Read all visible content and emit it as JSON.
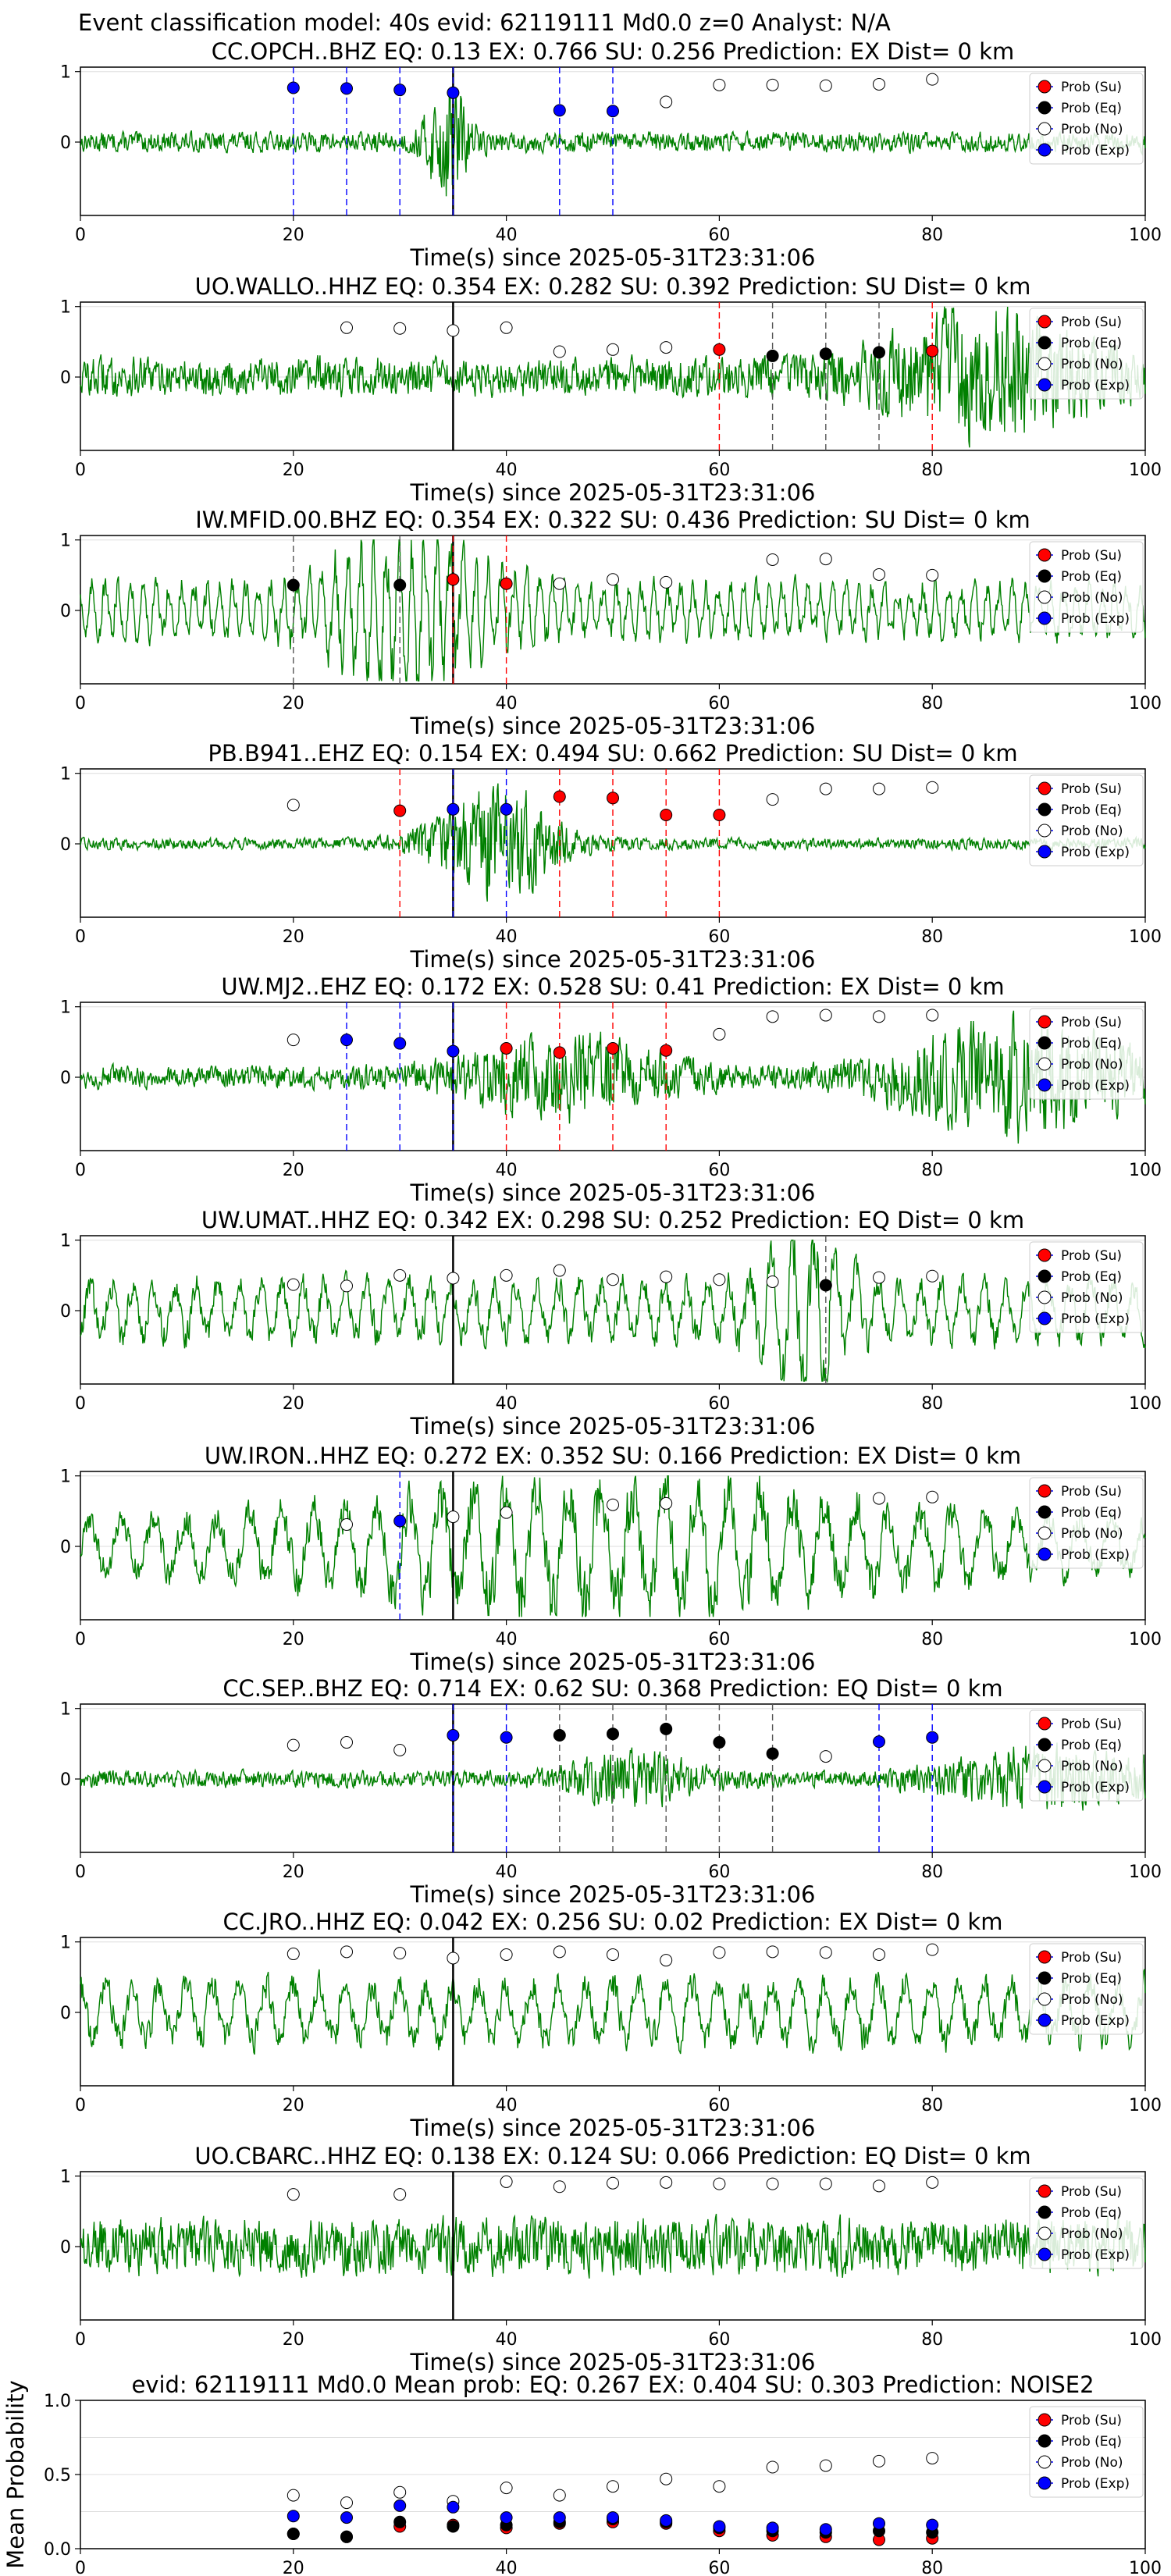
{
  "figure": {
    "suptitle": "Event classification model: 40s evid: 62119111 Md0.0 z=0 Analyst: N/A",
    "xlabel": "Time(s) since 2025-05-31T23:31:06"
  },
  "legend": {
    "entries": [
      {
        "label": "Prob (Su)",
        "color": "#ff0000"
      },
      {
        "label": "Prob (Eq)",
        "color": "#000000"
      },
      {
        "label": "Prob (No)",
        "color": "#ffffff"
      },
      {
        "label": "Prob (Exp)",
        "color": "#0000ff"
      }
    ]
  },
  "colors": {
    "waveform": "#008000",
    "su": "#ff0000",
    "eq": "#000000",
    "no": "#ffffff",
    "exp": "#0000ff",
    "pick_line": "#000000",
    "grid": "#dddddd"
  },
  "chart_data": [
    {
      "type": "line",
      "title": "CC.OPCH..BHZ   EQ: 0.13  EX: 0.766  SU: 0.256   Prediction: EX    Dist= 0 km",
      "xlabel": "Time(s) since 2025-05-31T23:31:06",
      "xlim": [
        0,
        100
      ],
      "ylim": [
        -1,
        1
      ],
      "xticks": [
        "0",
        "20",
        "40",
        "60",
        "80",
        "100"
      ],
      "yticks": [
        "1",
        "0"
      ],
      "pick_time": 35,
      "waveform": {
        "amplitude": 0.18,
        "noise_period": 0.3,
        "bursts": [
          {
            "t": 34.5,
            "width": 2.0,
            "amp": 1.0,
            "period": 0.4
          }
        ]
      },
      "markers": [
        {
          "t": 20,
          "cls": "exp",
          "p": 0.77
        },
        {
          "t": 25,
          "cls": "exp",
          "p": 0.76
        },
        {
          "t": 30,
          "cls": "exp",
          "p": 0.74
        },
        {
          "t": 35,
          "cls": "exp",
          "p": 0.7
        },
        {
          "t": 45,
          "cls": "exp",
          "p": 0.45
        },
        {
          "t": 50,
          "cls": "exp",
          "p": 0.44
        },
        {
          "t": 55,
          "cls": "no",
          "p": 0.57
        },
        {
          "t": 60,
          "cls": "no",
          "p": 0.81
        },
        {
          "t": 65,
          "cls": "no",
          "p": 0.81
        },
        {
          "t": 70,
          "cls": "no",
          "p": 0.8
        },
        {
          "t": 75,
          "cls": "no",
          "p": 0.82
        },
        {
          "t": 80,
          "cls": "no",
          "p": 0.89
        }
      ]
    },
    {
      "type": "line",
      "title": "UO.WALLO..HHZ   EQ: 0.354  EX: 0.282  SU: 0.392   Prediction: SU    Dist= 0 km",
      "xlabel": "Time(s) since 2025-05-31T23:31:06",
      "xlim": [
        0,
        100
      ],
      "ylim": [
        -1,
        1
      ],
      "xticks": [
        "0",
        "20",
        "40",
        "60",
        "80",
        "100"
      ],
      "yticks": [
        "1",
        "0"
      ],
      "pick_time": 35,
      "waveform": {
        "amplitude": 0.35,
        "noise_period": 0.25,
        "bursts": [
          {
            "t": 85,
            "width": 10,
            "amp": 0.9,
            "period": 0.3
          }
        ]
      },
      "markers": [
        {
          "t": 25,
          "cls": "no",
          "p": 0.7
        },
        {
          "t": 30,
          "cls": "no",
          "p": 0.69
        },
        {
          "t": 35,
          "cls": "no",
          "p": 0.66
        },
        {
          "t": 40,
          "cls": "no",
          "p": 0.7
        },
        {
          "t": 45,
          "cls": "no",
          "p": 0.36
        },
        {
          "t": 50,
          "cls": "no",
          "p": 0.39
        },
        {
          "t": 55,
          "cls": "no",
          "p": 0.42
        },
        {
          "t": 60,
          "cls": "su",
          "p": 0.39
        },
        {
          "t": 65,
          "cls": "eq",
          "p": 0.3
        },
        {
          "t": 70,
          "cls": "eq",
          "p": 0.33
        },
        {
          "t": 75,
          "cls": "eq",
          "p": 0.35
        },
        {
          "t": 80,
          "cls": "su",
          "p": 0.37
        }
      ]
    },
    {
      "type": "line",
      "title": "IW.MFID.00.BHZ   EQ: 0.354  EX: 0.322  SU: 0.436   Prediction: SU    Dist= 0 km",
      "xlabel": "Time(s) since 2025-05-31T23:31:06",
      "xlim": [
        0,
        100
      ],
      "ylim": [
        -1,
        1
      ],
      "xticks": [
        "0",
        "20",
        "40",
        "60",
        "80",
        "100"
      ],
      "yticks": [
        "1",
        "0"
      ],
      "pick_time": 35,
      "waveform": {
        "amplitude": 0.45,
        "noise_period": 1.2,
        "bursts": [
          {
            "t": 31,
            "width": 8,
            "amp": 0.9,
            "period": 0.3
          }
        ]
      },
      "markers": [
        {
          "t": 20,
          "cls": "eq",
          "p": 0.36
        },
        {
          "t": 30,
          "cls": "eq",
          "p": 0.36
        },
        {
          "t": 35,
          "cls": "su",
          "p": 0.44
        },
        {
          "t": 40,
          "cls": "su",
          "p": 0.38
        },
        {
          "t": 45,
          "cls": "no",
          "p": 0.38
        },
        {
          "t": 50,
          "cls": "no",
          "p": 0.44
        },
        {
          "t": 55,
          "cls": "no",
          "p": 0.4
        },
        {
          "t": 65,
          "cls": "no",
          "p": 0.72
        },
        {
          "t": 70,
          "cls": "no",
          "p": 0.73
        },
        {
          "t": 75,
          "cls": "no",
          "p": 0.51
        },
        {
          "t": 80,
          "cls": "no",
          "p": 0.5
        }
      ]
    },
    {
      "type": "line",
      "title": "PB.B941..EHZ   EQ: 0.154  EX: 0.494  SU: 0.662   Prediction: SU    Dist= 0 km",
      "xlabel": "Time(s) since 2025-05-31T23:31:06",
      "xlim": [
        0,
        100
      ],
      "ylim": [
        -1,
        1
      ],
      "xticks": [
        "0",
        "20",
        "40",
        "60",
        "80",
        "100"
      ],
      "yticks": [
        "1",
        "0"
      ],
      "pick_time": 35,
      "waveform": {
        "amplitude": 0.1,
        "noise_period": 0.3,
        "bursts": [
          {
            "t": 39,
            "width": 6,
            "amp": 1.0,
            "period": 0.35
          }
        ]
      },
      "markers": [
        {
          "t": 20,
          "cls": "no",
          "p": 0.55
        },
        {
          "t": 30,
          "cls": "su",
          "p": 0.47
        },
        {
          "t": 35,
          "cls": "exp",
          "p": 0.49
        },
        {
          "t": 40,
          "cls": "exp",
          "p": 0.49
        },
        {
          "t": 45,
          "cls": "su",
          "p": 0.67
        },
        {
          "t": 50,
          "cls": "su",
          "p": 0.65
        },
        {
          "t": 55,
          "cls": "su",
          "p": 0.41
        },
        {
          "t": 60,
          "cls": "su",
          "p": 0.41
        },
        {
          "t": 65,
          "cls": "no",
          "p": 0.63
        },
        {
          "t": 70,
          "cls": "no",
          "p": 0.78
        },
        {
          "t": 75,
          "cls": "no",
          "p": 0.78
        },
        {
          "t": 80,
          "cls": "no",
          "p": 0.8
        }
      ]
    },
    {
      "type": "line",
      "title": "UW.MJ2..EHZ   EQ: 0.172  EX: 0.528  SU: 0.41   Prediction: EX    Dist= 0 km",
      "xlabel": "Time(s) since 2025-05-31T23:31:06",
      "xlim": [
        0,
        100
      ],
      "ylim": [
        -1,
        1
      ],
      "xticks": [
        "0",
        "20",
        "40",
        "60",
        "80",
        "100"
      ],
      "yticks": [
        "1",
        "0"
      ],
      "pick_time": 35,
      "waveform": {
        "amplitude": 0.2,
        "noise_period": 0.3,
        "bursts": [
          {
            "t": 45,
            "width": 10,
            "amp": 0.6,
            "period": 0.3
          },
          {
            "t": 88,
            "width": 12,
            "amp": 0.9,
            "period": 0.3
          }
        ]
      },
      "markers": [
        {
          "t": 20,
          "cls": "no",
          "p": 0.53
        },
        {
          "t": 25,
          "cls": "exp",
          "p": 0.53
        },
        {
          "t": 30,
          "cls": "exp",
          "p": 0.48
        },
        {
          "t": 35,
          "cls": "exp",
          "p": 0.37
        },
        {
          "t": 40,
          "cls": "su",
          "p": 0.41
        },
        {
          "t": 45,
          "cls": "su",
          "p": 0.35
        },
        {
          "t": 50,
          "cls": "su",
          "p": 0.41
        },
        {
          "t": 55,
          "cls": "su",
          "p": 0.38
        },
        {
          "t": 60,
          "cls": "no",
          "p": 0.61
        },
        {
          "t": 65,
          "cls": "no",
          "p": 0.86
        },
        {
          "t": 70,
          "cls": "no",
          "p": 0.88
        },
        {
          "t": 75,
          "cls": "no",
          "p": 0.86
        },
        {
          "t": 80,
          "cls": "no",
          "p": 0.88
        }
      ]
    },
    {
      "type": "line",
      "title": "UW.UMAT..HHZ   EQ: 0.342  EX: 0.298  SU: 0.252   Prediction: EQ    Dist= 0 km",
      "xlabel": "Time(s) since 2025-05-31T23:31:06",
      "xlim": [
        0,
        100
      ],
      "ylim": [
        -1,
        1
      ],
      "xticks": [
        "0",
        "20",
        "40",
        "60",
        "80",
        "100"
      ],
      "yticks": [
        "1",
        "0"
      ],
      "pick_time": 35,
      "waveform": {
        "amplitude": 0.5,
        "noise_period": 2.0,
        "bursts": [
          {
            "t": 68,
            "width": 4,
            "amp": 0.9,
            "period": 0.4
          }
        ]
      },
      "markers": [
        {
          "t": 20,
          "cls": "no",
          "p": 0.37
        },
        {
          "t": 25,
          "cls": "no",
          "p": 0.35
        },
        {
          "t": 30,
          "cls": "no",
          "p": 0.5
        },
        {
          "t": 35,
          "cls": "no",
          "p": 0.46
        },
        {
          "t": 40,
          "cls": "no",
          "p": 0.5
        },
        {
          "t": 45,
          "cls": "no",
          "p": 0.57
        },
        {
          "t": 50,
          "cls": "no",
          "p": 0.44
        },
        {
          "t": 55,
          "cls": "no",
          "p": 0.48
        },
        {
          "t": 60,
          "cls": "no",
          "p": 0.44
        },
        {
          "t": 65,
          "cls": "no",
          "p": 0.41
        },
        {
          "t": 70,
          "cls": "eq",
          "p": 0.36
        },
        {
          "t": 75,
          "cls": "no",
          "p": 0.47
        },
        {
          "t": 80,
          "cls": "no",
          "p": 0.49
        }
      ]
    },
    {
      "type": "line",
      "title": "UW.IRON..HHZ   EQ: 0.272  EX: 0.352  SU: 0.166   Prediction: EX    Dist= 0 km",
      "xlabel": "Time(s) since 2025-05-31T23:31:06",
      "xlim": [
        0,
        100
      ],
      "ylim": [
        -1,
        1
      ],
      "xticks": [
        "0",
        "20",
        "40",
        "60",
        "80",
        "100"
      ],
      "yticks": [
        "1",
        "0"
      ],
      "pick_time": 35,
      "waveform": {
        "amplitude": 0.45,
        "noise_period": 3.0,
        "bursts": [
          {
            "t": 50,
            "width": 28,
            "amp": 0.7,
            "period": 0.3
          }
        ]
      },
      "markers": [
        {
          "t": 25,
          "cls": "no",
          "p": 0.31
        },
        {
          "t": 30,
          "cls": "exp",
          "p": 0.36
        },
        {
          "t": 35,
          "cls": "no",
          "p": 0.42
        },
        {
          "t": 40,
          "cls": "no",
          "p": 0.48
        },
        {
          "t": 50,
          "cls": "no",
          "p": 0.59
        },
        {
          "t": 55,
          "cls": "no",
          "p": 0.61
        },
        {
          "t": 75,
          "cls": "no",
          "p": 0.68
        },
        {
          "t": 80,
          "cls": "no",
          "p": 0.7
        }
      ]
    },
    {
      "type": "line",
      "title": "CC.SEP..BHZ   EQ: 0.714  EX: 0.62  SU: 0.368   Prediction: EQ    Dist= 0 km",
      "xlabel": "Time(s) since 2025-05-31T23:31:06",
      "xlim": [
        0,
        100
      ],
      "ylim": [
        -1,
        1
      ],
      "xticks": [
        "0",
        "20",
        "40",
        "60",
        "80",
        "100"
      ],
      "yticks": [
        "1",
        "0"
      ],
      "pick_time": 35,
      "waveform": {
        "amplitude": 0.15,
        "noise_period": 0.5,
        "bursts": [
          {
            "t": 52,
            "width": 6,
            "amp": 0.4,
            "period": 0.3
          },
          {
            "t": 91,
            "width": 10,
            "amp": 0.5,
            "period": 0.3
          }
        ]
      },
      "markers": [
        {
          "t": 20,
          "cls": "no",
          "p": 0.48
        },
        {
          "t": 25,
          "cls": "no",
          "p": 0.52
        },
        {
          "t": 30,
          "cls": "no",
          "p": 0.41
        },
        {
          "t": 35,
          "cls": "exp",
          "p": 0.62
        },
        {
          "t": 40,
          "cls": "exp",
          "p": 0.59
        },
        {
          "t": 45,
          "cls": "eq",
          "p": 0.62
        },
        {
          "t": 50,
          "cls": "eq",
          "p": 0.64
        },
        {
          "t": 55,
          "cls": "eq",
          "p": 0.71
        },
        {
          "t": 60,
          "cls": "eq",
          "p": 0.52
        },
        {
          "t": 65,
          "cls": "eq",
          "p": 0.36
        },
        {
          "t": 70,
          "cls": "no",
          "p": 0.32
        },
        {
          "t": 75,
          "cls": "exp",
          "p": 0.53
        },
        {
          "t": 80,
          "cls": "exp",
          "p": 0.59
        }
      ]
    },
    {
      "type": "line",
      "title": "CC.JRO..HHZ   EQ: 0.042  EX: 0.256  SU: 0.02   Prediction: EX    Dist= 0 km",
      "xlabel": "Time(s) since 2025-05-31T23:31:06",
      "xlim": [
        0,
        100
      ],
      "ylim": [
        -1,
        1
      ],
      "xticks": [
        "0",
        "20",
        "40",
        "60",
        "80",
        "100"
      ],
      "yticks": [
        "1",
        "0"
      ],
      "pick_time": 35,
      "waveform": {
        "amplitude": 0.55,
        "noise_period": 2.5,
        "bursts": []
      },
      "markers": [
        {
          "t": 20,
          "cls": "no",
          "p": 0.83
        },
        {
          "t": 25,
          "cls": "no",
          "p": 0.86
        },
        {
          "t": 30,
          "cls": "no",
          "p": 0.84
        },
        {
          "t": 35,
          "cls": "no",
          "p": 0.77
        },
        {
          "t": 40,
          "cls": "no",
          "p": 0.82
        },
        {
          "t": 45,
          "cls": "no",
          "p": 0.86
        },
        {
          "t": 50,
          "cls": "no",
          "p": 0.82
        },
        {
          "t": 55,
          "cls": "no",
          "p": 0.74
        },
        {
          "t": 60,
          "cls": "no",
          "p": 0.85
        },
        {
          "t": 65,
          "cls": "no",
          "p": 0.86
        },
        {
          "t": 70,
          "cls": "no",
          "p": 0.85
        },
        {
          "t": 75,
          "cls": "no",
          "p": 0.82
        },
        {
          "t": 80,
          "cls": "no",
          "p": 0.89
        }
      ]
    },
    {
      "type": "line",
      "title": "UO.CBARC..HHZ   EQ: 0.138  EX: 0.124  SU: 0.066   Prediction: EQ    Dist= 0 km",
      "xlabel": "Time(s) since 2025-05-31T23:31:06",
      "xlim": [
        0,
        100
      ],
      "ylim": [
        -1,
        1
      ],
      "xticks": [
        "0",
        "20",
        "40",
        "60",
        "80",
        "100"
      ],
      "yticks": [
        "1",
        "0"
      ],
      "pick_time": 35,
      "waveform": {
        "amplitude": 0.5,
        "noise_period": 0.8,
        "bursts": []
      },
      "markers": [
        {
          "t": 20,
          "cls": "no",
          "p": 0.74
        },
        {
          "t": 30,
          "cls": "no",
          "p": 0.74
        },
        {
          "t": 40,
          "cls": "no",
          "p": 0.92
        },
        {
          "t": 45,
          "cls": "no",
          "p": 0.85
        },
        {
          "t": 50,
          "cls": "no",
          "p": 0.9
        },
        {
          "t": 55,
          "cls": "no",
          "p": 0.91
        },
        {
          "t": 60,
          "cls": "no",
          "p": 0.89
        },
        {
          "t": 65,
          "cls": "no",
          "p": 0.89
        },
        {
          "t": 70,
          "cls": "no",
          "p": 0.89
        },
        {
          "t": 75,
          "cls": "no",
          "p": 0.86
        },
        {
          "t": 80,
          "cls": "no",
          "p": 0.91
        }
      ]
    },
    {
      "type": "scatter",
      "title": "evid: 62119111  Md0.0   Mean prob:   EQ: 0.267  EX: 0.404  SU: 0.303   Prediction: NOISE2",
      "ylabel": "Mean Probability",
      "xlim": [
        0,
        100
      ],
      "ylim": [
        0,
        1.0
      ],
      "xticks": [
        "0",
        "20",
        "40",
        "60",
        "80",
        "100"
      ],
      "yticks": [
        "0.0",
        "0.5",
        "1.0"
      ],
      "x": [
        20,
        25,
        30,
        35,
        40,
        45,
        50,
        55,
        60,
        65,
        70,
        75,
        80
      ],
      "series": [
        {
          "name": "Prob (Su)",
          "cls": "su",
          "values": [
            0.1,
            0.08,
            0.15,
            0.16,
            0.14,
            0.17,
            0.18,
            0.17,
            0.12,
            0.09,
            0.08,
            0.06,
            0.07
          ]
        },
        {
          "name": "Prob (Eq)",
          "cls": "eq",
          "values": [
            0.1,
            0.08,
            0.18,
            0.15,
            0.16,
            0.18,
            0.2,
            0.18,
            0.14,
            0.12,
            0.11,
            0.12,
            0.11
          ]
        },
        {
          "name": "Prob (No)",
          "cls": "no",
          "values": [
            0.36,
            0.31,
            0.38,
            0.32,
            0.41,
            0.36,
            0.42,
            0.47,
            0.42,
            0.55,
            0.56,
            0.59,
            0.61
          ]
        },
        {
          "name": "Prob (Exp)",
          "cls": "exp",
          "values": [
            0.22,
            0.21,
            0.29,
            0.28,
            0.21,
            0.21,
            0.21,
            0.19,
            0.15,
            0.14,
            0.13,
            0.17,
            0.16
          ]
        }
      ]
    }
  ]
}
